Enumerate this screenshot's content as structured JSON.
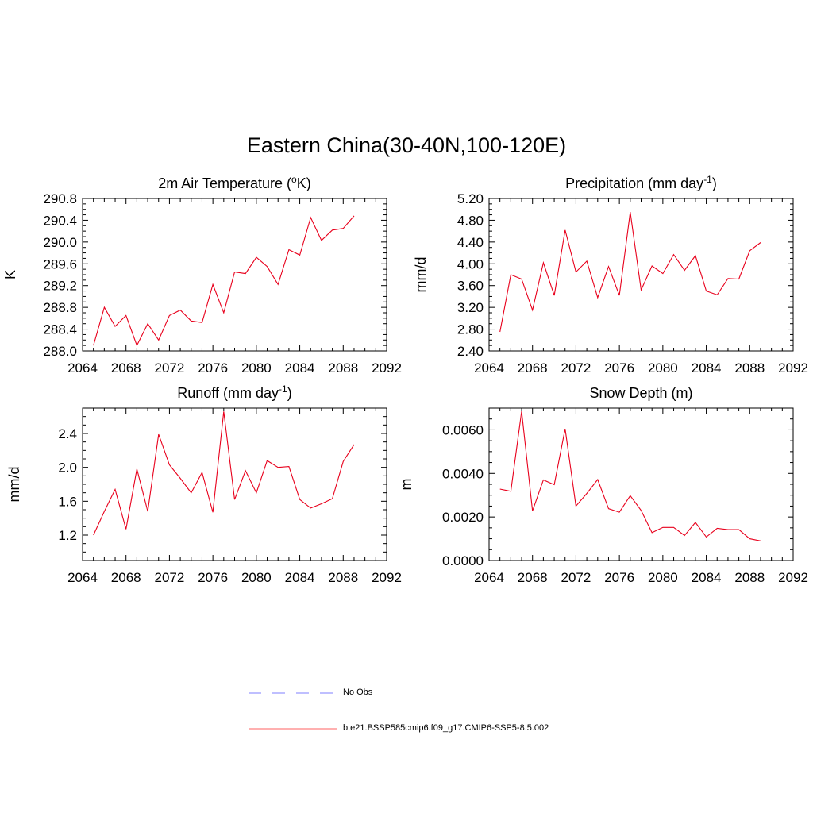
{
  "title": "Eastern China(30-40N,100-120E)",
  "colors": {
    "model": "#e8001c",
    "obs": "#9999ff"
  },
  "legend": [
    {
      "label": "No Obs",
      "style": "dashed",
      "color": "#9999ff"
    },
    {
      "label": "b.e21.BSSP585cmip6.f09_g17.CMIP6-SSP5-8.5.002",
      "style": "solid",
      "color": "#ff8080"
    }
  ],
  "chart_data": [
    {
      "type": "line",
      "title": "2m Air Temperature (°K)",
      "title_main": "2m Air Temperature (",
      "title_sup": "o",
      "title_end": "K)",
      "ylabel": "K",
      "xlim": [
        2064,
        2092
      ],
      "ylim": [
        288.0,
        290.8
      ],
      "xticks": [
        2064,
        2068,
        2072,
        2076,
        2080,
        2084,
        2088,
        2092
      ],
      "yticks": [
        "288.0",
        "288.4",
        "288.8",
        "289.2",
        "289.6",
        "290.0",
        "290.4",
        "290.8"
      ],
      "x": [
        2065,
        2066,
        2067,
        2068,
        2069,
        2070,
        2071,
        2072,
        2073,
        2074,
        2075,
        2076,
        2077,
        2078,
        2079,
        2080,
        2081,
        2082,
        2083,
        2084,
        2085,
        2086,
        2087,
        2088,
        2089
      ],
      "series": [
        {
          "values": [
            288.1,
            288.8,
            288.45,
            288.65,
            288.1,
            288.5,
            288.2,
            288.65,
            288.75,
            288.55,
            288.52,
            289.22,
            288.7,
            289.45,
            289.42,
            289.72,
            289.55,
            289.22,
            289.86,
            289.76,
            290.45,
            290.03,
            290.22,
            290.25,
            290.48
          ]
        }
      ]
    },
    {
      "type": "line",
      "title": "Precipitation (mm day-1)",
      "title_main": "Precipitation (mm day",
      "title_sup": "-1",
      "title_end": ")",
      "ylabel": "mm/d",
      "xlim": [
        2064,
        2092
      ],
      "ylim": [
        2.4,
        5.2
      ],
      "xticks": [
        2064,
        2068,
        2072,
        2076,
        2080,
        2084,
        2088,
        2092
      ],
      "yticks": [
        "2.40",
        "2.80",
        "3.20",
        "3.60",
        "4.00",
        "4.40",
        "4.80",
        "5.20"
      ],
      "x": [
        2065,
        2066,
        2067,
        2068,
        2069,
        2070,
        2071,
        2072,
        2073,
        2074,
        2075,
        2076,
        2077,
        2078,
        2079,
        2080,
        2081,
        2082,
        2083,
        2084,
        2085,
        2086,
        2087,
        2088,
        2089
      ],
      "series": [
        {
          "values": [
            2.75,
            3.8,
            3.72,
            3.15,
            4.02,
            3.42,
            4.62,
            3.85,
            4.05,
            3.38,
            3.95,
            3.42,
            4.95,
            3.52,
            3.96,
            3.82,
            4.17,
            3.88,
            4.15,
            3.5,
            3.43,
            3.73,
            3.72,
            4.24,
            4.39
          ]
        }
      ]
    },
    {
      "type": "line",
      "title": "Runoff (mm day-1)",
      "title_main": "Runoff (mm day",
      "title_sup": "-1",
      "title_end": ")",
      "ylabel": "mm/d",
      "xlim": [
        2064,
        2092
      ],
      "ylim": [
        0.9,
        2.7
      ],
      "xticks": [
        2064,
        2068,
        2072,
        2076,
        2080,
        2084,
        2088,
        2092
      ],
      "yticks": [
        "1.2",
        "1.6",
        "2.0",
        "2.4"
      ],
      "ytick_values": [
        1.2,
        1.6,
        2.0,
        2.4
      ],
      "x": [
        2065,
        2066,
        2067,
        2068,
        2069,
        2070,
        2071,
        2072,
        2073,
        2074,
        2075,
        2076,
        2077,
        2078,
        2079,
        2080,
        2081,
        2082,
        2083,
        2084,
        2085,
        2086,
        2087,
        2088,
        2089
      ],
      "series": [
        {
          "values": [
            1.2,
            1.48,
            1.74,
            1.27,
            1.98,
            1.48,
            2.39,
            2.03,
            1.87,
            1.7,
            1.94,
            1.47,
            2.66,
            1.62,
            1.96,
            1.7,
            2.08,
            2.0,
            2.01,
            1.62,
            1.52,
            1.57,
            1.63,
            2.07,
            2.27
          ]
        }
      ]
    },
    {
      "type": "line",
      "title": "Snow Depth (m)",
      "title_main": "Snow Depth (m)",
      "title_sup": "",
      "title_end": "",
      "ylabel": "m",
      "xlim": [
        2064,
        2092
      ],
      "ylim": [
        0.0,
        0.007
      ],
      "xticks": [
        2064,
        2068,
        2072,
        2076,
        2080,
        2084,
        2088,
        2092
      ],
      "yticks": [
        "0.0000",
        "0.0020",
        "0.0040",
        "0.0060"
      ],
      "ytick_values": [
        0.0,
        0.002,
        0.004,
        0.006
      ],
      "x": [
        2065,
        2066,
        2067,
        2068,
        2069,
        2070,
        2071,
        2072,
        2073,
        2074,
        2075,
        2076,
        2077,
        2078,
        2079,
        2080,
        2081,
        2082,
        2083,
        2084,
        2085,
        2086,
        2087,
        2088,
        2089
      ],
      "series": [
        {
          "values": [
            0.00328,
            0.00318,
            0.00685,
            0.00228,
            0.0037,
            0.00348,
            0.00605,
            0.0025,
            0.00308,
            0.00372,
            0.00238,
            0.00222,
            0.00298,
            0.0023,
            0.00128,
            0.00152,
            0.00152,
            0.00115,
            0.00175,
            0.00108,
            0.00148,
            0.00142,
            0.00142,
            0.001,
            0.0009
          ]
        }
      ]
    }
  ]
}
